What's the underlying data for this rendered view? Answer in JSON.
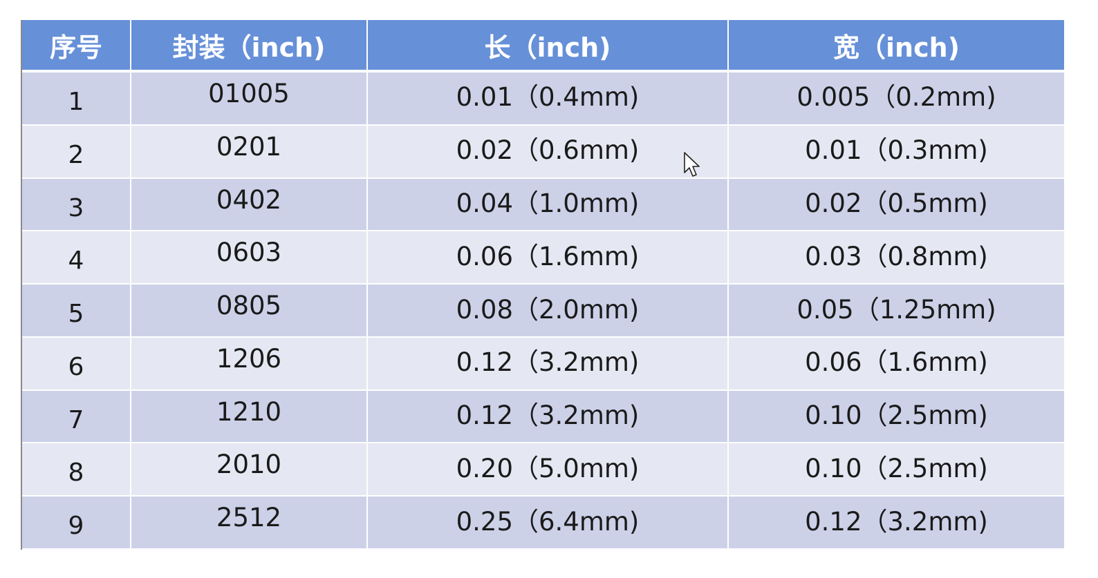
{
  "table": {
    "headers": [
      "序号",
      "封装（inch)",
      "长（inch)",
      "宽（inch)"
    ],
    "rows": [
      {
        "no": "1",
        "package": "01005",
        "length": "0.01（0.4mm)",
        "width": "0.005（0.2mm)"
      },
      {
        "no": "2",
        "package": "0201",
        "length": "0.02（0.6mm)",
        "width": "0.01（0.3mm)"
      },
      {
        "no": "3",
        "package": "0402",
        "length": "0.04（1.0mm)",
        "width": "0.02（0.5mm)"
      },
      {
        "no": "4",
        "package": "0603",
        "length": "0.06（1.6mm)",
        "width": "0.03（0.8mm)"
      },
      {
        "no": "5",
        "package": "0805",
        "length": "0.08（2.0mm)",
        "width": "0.05（1.25mm)"
      },
      {
        "no": "6",
        "package": "1206",
        "length": "0.12（3.2mm)",
        "width": "0.06（1.6mm)"
      },
      {
        "no": "7",
        "package": "1210",
        "length": "0.12（3.2mm)",
        "width": "0.10（2.5mm)"
      },
      {
        "no": "8",
        "package": "2010",
        "length": "0.20（5.0mm)",
        "width": "0.10（2.5mm)"
      },
      {
        "no": "9",
        "package": "2512",
        "length": "0.25（6.4mm)",
        "width": "0.12（3.2mm)"
      }
    ]
  },
  "colors": {
    "header_bg": "#6690d8",
    "row_dark": "#ccd1e8",
    "row_light": "#e5e7f2",
    "text": "#1a1a1a"
  },
  "icons": {
    "cursor": "mouse-pointer-icon"
  }
}
